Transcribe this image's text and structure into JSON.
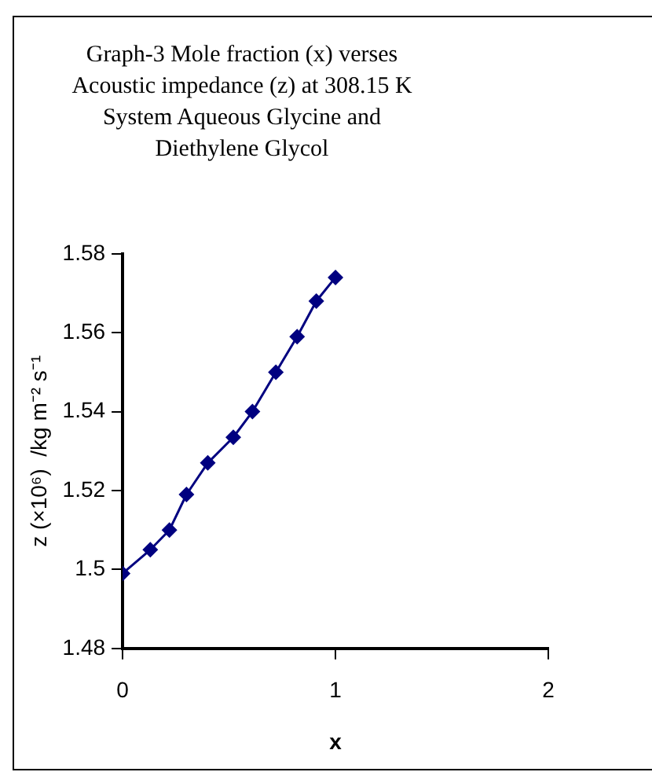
{
  "chart_data": {
    "type": "line",
    "title": "Graph-3  Mole fraction (x) verses\nAcoustic impedance (z) at  308.15 K\nSystem Aqueous Glycine and\nDiethylene Glycol",
    "xlabel": "x",
    "ylabel": "z (×10⁶)  /kg m⁻² s⁻¹",
    "x": [
      0,
      0.13,
      0.22,
      0.3,
      0.4,
      0.52,
      0.61,
      0.72,
      0.82,
      0.91,
      1
    ],
    "series": [
      {
        "color": "#000080",
        "values": [
          1.499,
          1.505,
          1.51,
          1.519,
          1.527,
          1.5335,
          1.54,
          1.55,
          1.559,
          1.568,
          1.574
        ]
      }
    ],
    "xlim": [
      0,
      2
    ],
    "xticks": [
      0,
      1,
      2
    ],
    "ylim": [
      1.48,
      1.58
    ],
    "yticks": [
      1.48,
      1.5,
      1.52,
      1.54,
      1.56,
      1.58
    ],
    "grid": false,
    "legend": false,
    "marker": "diamond",
    "line_style": "solid"
  }
}
